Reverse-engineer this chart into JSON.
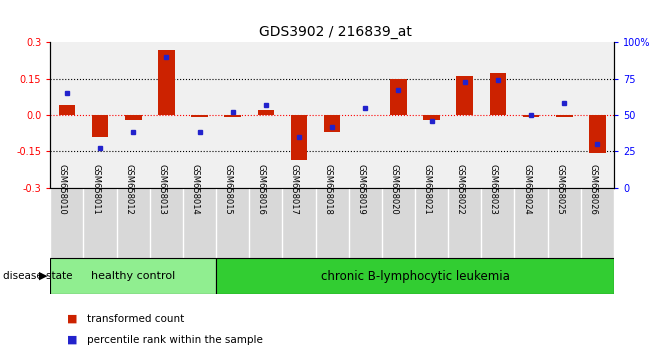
{
  "title": "GDS3902 / 216839_at",
  "samples": [
    "GSM658010",
    "GSM658011",
    "GSM658012",
    "GSM658013",
    "GSM658014",
    "GSM658015",
    "GSM658016",
    "GSM658017",
    "GSM658018",
    "GSM658019",
    "GSM658020",
    "GSM658021",
    "GSM658022",
    "GSM658023",
    "GSM658024",
    "GSM658025",
    "GSM658026"
  ],
  "transformed_count": [
    0.04,
    -0.09,
    -0.02,
    0.27,
    -0.01,
    -0.01,
    0.02,
    -0.185,
    -0.07,
    0.0,
    0.15,
    -0.02,
    0.16,
    0.175,
    -0.01,
    -0.01,
    -0.155
  ],
  "percentile_rank": [
    65,
    27,
    38,
    90,
    38,
    52,
    57,
    35,
    42,
    55,
    67,
    46,
    73,
    74,
    50,
    58,
    30
  ],
  "healthy_control_count": 5,
  "group_labels": [
    "healthy control",
    "chronic B-lymphocytic leukemia"
  ],
  "bar_color": "#cc2200",
  "dot_color": "#2222cc",
  "ylim_left": [
    -0.3,
    0.3
  ],
  "ylim_right": [
    0,
    100
  ],
  "yticks_left": [
    -0.3,
    -0.15,
    0.0,
    0.15,
    0.3
  ],
  "yticks_right": [
    0,
    25,
    50,
    75,
    100
  ],
  "legend_labels": [
    "transformed count",
    "percentile rank within the sample"
  ],
  "legend_colors": [
    "#cc2200",
    "#2222cc"
  ],
  "disease_state_label": "disease state"
}
